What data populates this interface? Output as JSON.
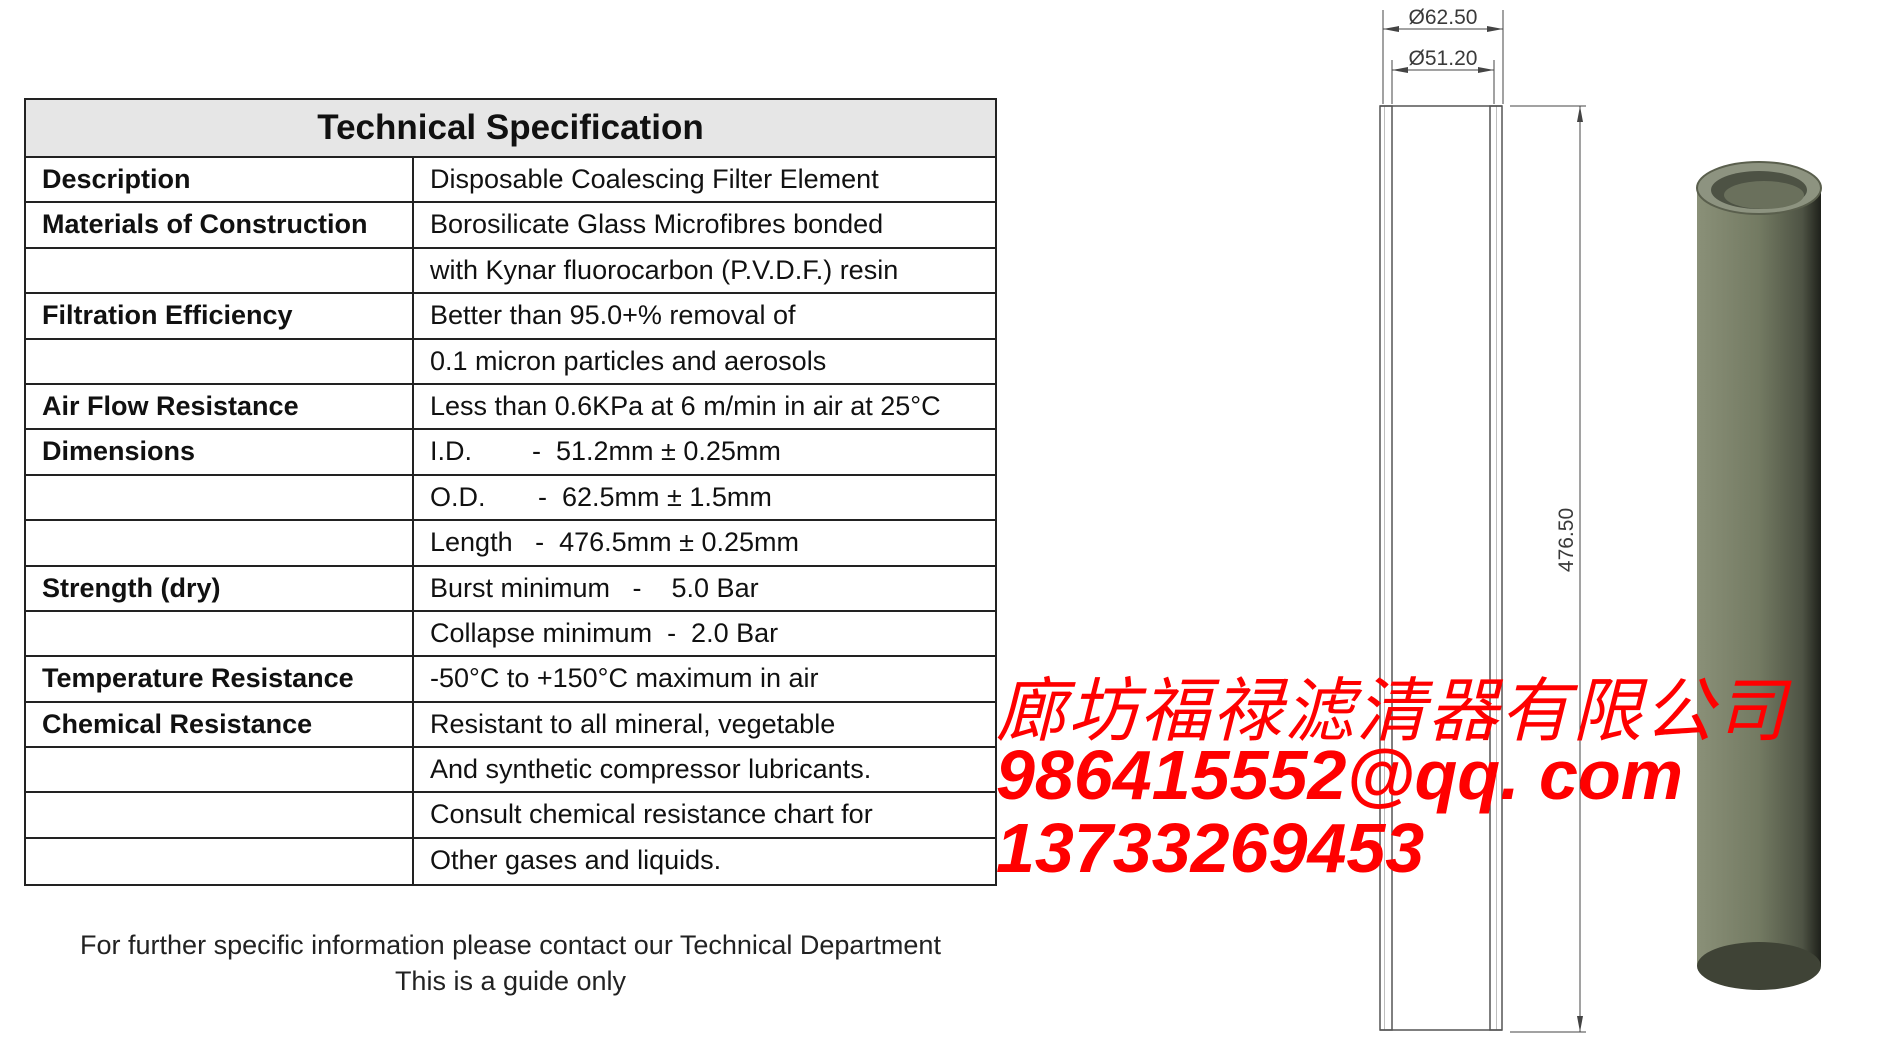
{
  "spec_table": {
    "title": "Technical Specification",
    "rows": [
      {
        "label": "Description",
        "value": "Disposable Coalescing Filter Element"
      },
      {
        "label": "Materials of Construction",
        "value": "Borosilicate Glass Microfibres bonded"
      },
      {
        "label": "",
        "value": "with Kynar fluorocarbon (P.V.D.F.) resin"
      },
      {
        "label": "Filtration Efficiency",
        "value": "Better than 95.0+% removal of"
      },
      {
        "label": "",
        "value": "0.1 micron particles and aerosols"
      },
      {
        "label": "Air Flow Resistance",
        "value": "Less than 0.6KPa at 6 m/min in air at 25°C"
      },
      {
        "label": "Dimensions",
        "value": "I.D.        -  51.2mm ± 0.25mm"
      },
      {
        "label": "",
        "value": "O.D.       -  62.5mm ± 1.5mm"
      },
      {
        "label": "",
        "value": "Length   -  476.5mm ± 0.25mm"
      },
      {
        "label": "Strength (dry)",
        "value": "Burst minimum   -    5.0 Bar"
      },
      {
        "label": "",
        "value": "Collapse minimum  -  2.0 Bar"
      },
      {
        "label": "Temperature Resistance",
        "value": "-50°C to +150°C maximum in air"
      },
      {
        "label": "Chemical Resistance",
        "value": "Resistant to all mineral, vegetable"
      },
      {
        "label": "",
        "value": "And synthetic compressor lubricants."
      },
      {
        "label": "",
        "value": "Consult chemical resistance chart for"
      },
      {
        "label": "",
        "value": "Other gases and liquids."
      }
    ]
  },
  "footer": {
    "line1": "For further specific information please contact our Technical Department",
    "line2": "This is a guide only"
  },
  "drawing": {
    "od_label": "Ø62.50",
    "id_label": "Ø51.20",
    "length_label": "476.50",
    "cylinder_color": "#7a8068"
  },
  "watermark": {
    "company": "廊坊福禄滤清器有限公司",
    "email": "986415552@qq. com",
    "phone": "13733269453",
    "color": "#ff0000"
  }
}
